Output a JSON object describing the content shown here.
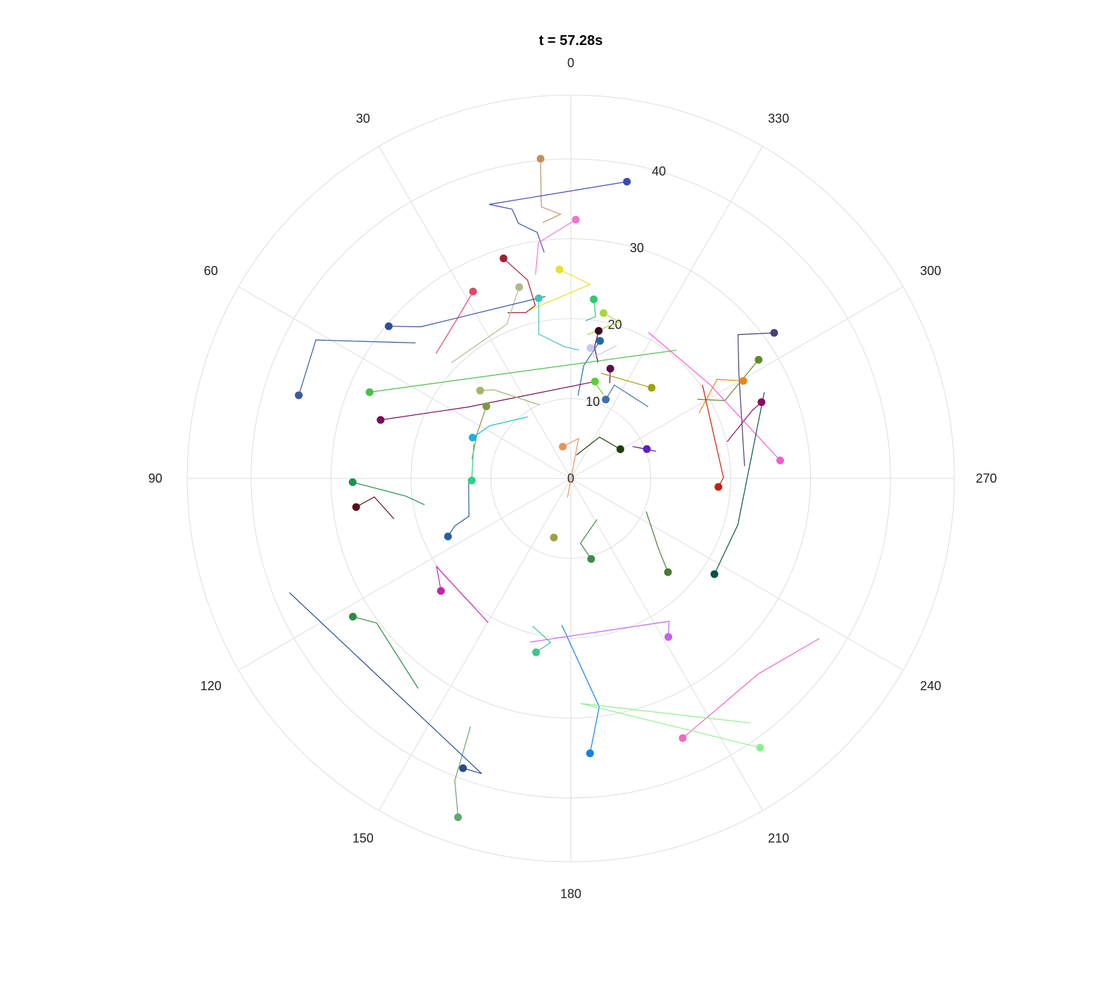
{
  "chart_data": {
    "type": "polar-scatter",
    "title": "t = 57.28s",
    "theta_direction": "counterclockwise",
    "theta_zero": "top",
    "theta_ticks": [
      0,
      30,
      60,
      90,
      120,
      150,
      180,
      210,
      240,
      270,
      300,
      330
    ],
    "r_ticks": [
      0,
      10,
      20,
      30,
      40
    ],
    "r_range": [
      0,
      40
    ],
    "grid": true,
    "legend": "none",
    "points": [
      {
        "theta": 5.4,
        "r": 40.2,
        "color": "#c4915a",
        "trail": [
          [
            6.2,
            34.2
          ],
          [
            2.2,
            33.1
          ],
          [
            6.3,
            32.2
          ]
        ]
      },
      {
        "theta": 349.3,
        "r": 37.8,
        "color": "#3d4bbd",
        "trail": [
          [
            16.6,
            35.8
          ],
          [
            12.3,
            34.5
          ],
          [
            11.6,
            32.6
          ],
          [
            7.8,
            31.1
          ],
          [
            6.7,
            28.5
          ]
        ]
      },
      {
        "theta": 358.9,
        "r": 32.4,
        "color": "#ee77cc",
        "trail": [
          [
            7.8,
            29.8
          ],
          [
            9.8,
            25.9
          ]
        ]
      },
      {
        "theta": 3.1,
        "r": 26.2,
        "color": "#e8e128",
        "trail": [
          [
            354.3,
            24.4
          ],
          [
            14.0,
            21.7
          ]
        ]
      },
      {
        "theta": 17.0,
        "r": 28.8,
        "color": "#a02035",
        "trail": [
          [
            12.3,
            25.4
          ],
          [
            11.6,
            22.1
          ],
          [
            15.2,
            21.5
          ],
          [
            20.9,
            22.2
          ]
        ]
      },
      {
        "theta": 27.6,
        "r": 26.4,
        "color": "#e24a6a",
        "trail": [
          [
            35.0,
            24.6
          ],
          [
            47.2,
            23.0
          ]
        ]
      },
      {
        "theta": 15.1,
        "r": 24.8,
        "color": "#b7b591",
        "trail": [
          [
            22.5,
            20.9
          ],
          [
            45.9,
            20.8
          ]
        ]
      },
      {
        "theta": 10.1,
        "r": 22.9,
        "color": "#45c4b9",
        "trail": [
          [
            12.5,
            18.5
          ],
          [
            2.7,
            16.5
          ],
          [
            356.3,
            16.1
          ]
        ]
      },
      {
        "theta": 352.7,
        "r": 22.6,
        "color": "#2ecc71",
        "trail": [
          [
            351.3,
            20.5
          ],
          [
            354.7,
            19.8
          ]
        ]
      },
      {
        "theta": 348.8,
        "r": 21.1,
        "color": "#a8d93a",
        "trail": [
          [
            342.8,
            20.5
          ],
          [
            353.5,
            18.1
          ]
        ]
      },
      {
        "theta": 349.3,
        "r": 18.8,
        "color": "#3a0a22",
        "trail": [
          [
            349.8,
            16.7
          ],
          [
            346.8,
            14.9
          ]
        ]
      },
      {
        "theta": 348.0,
        "r": 17.6,
        "color": "#1f6ab0",
        "trail": [
          [
            353.5,
            14.2
          ],
          [
            355.0,
            10.4
          ]
        ]
      },
      {
        "theta": 351.4,
        "r": 16.5,
        "color": "#c8c8f0",
        "trail": [
          [
            349.1,
            15.5
          ],
          [
            341.0,
            17.6
          ]
        ]
      },
      {
        "theta": 340.2,
        "r": 14.6,
        "color": "#5c0c4a",
        "trail": [
          [
            337.8,
            12.9
          ]
        ]
      },
      {
        "theta": 318.3,
        "r": 15.2,
        "color": "#9fa00c",
        "trail": [
          [
            334.0,
            13.9
          ],
          [
            344.0,
            13.7
          ]
        ]
      },
      {
        "theta": 346.0,
        "r": 12.5,
        "color": "#55d12e",
        "trail": [
          [
            344.5,
            12.1
          ],
          [
            339.0,
            11.3
          ]
        ]
      },
      {
        "theta": 336.1,
        "r": 10.8,
        "color": "#3f6fb4",
        "trail": [
          [
            335.0,
            12.9
          ],
          [
            312.8,
            13.2
          ]
        ]
      },
      {
        "theta": 305.6,
        "r": 31.3,
        "color": "#4b3f78",
        "trail": [
          [
            310.7,
            27.6
          ],
          [
            302.0,
            24.8
          ],
          [
            274.0,
            21.8
          ]
        ]
      },
      {
        "theta": 299.5,
        "r": 24.8,
        "color": "#e8871a",
        "trail": [
          [
            304.1,
            22.1
          ],
          [
            297.0,
            18.0
          ]
        ]
      },
      {
        "theta": 302.3,
        "r": 27.8,
        "color": "#5f8a24",
        "trail": [
          [
            296.8,
            21.6
          ],
          [
            302.0,
            18.7
          ]
        ]
      },
      {
        "theta": 291.8,
        "r": 25.7,
        "color": "#8e0a5c",
        "trail": [
          [
            290.5,
            24.2
          ],
          [
            283.2,
            20.1
          ]
        ]
      },
      {
        "theta": 274.9,
        "r": 26.3,
        "color": "#f25ed0",
        "trail": [
          [
            304.0,
            21.0
          ],
          [
            332.0,
            20.7
          ]
        ]
      },
      {
        "theta": 266.7,
        "r": 18.5,
        "color": "#c9200a",
        "trail": [
          [
            270.3,
            19.1
          ],
          [
            305.4,
            20.2
          ]
        ]
      },
      {
        "theta": 236.3,
        "r": 21.6,
        "color": "#0a5247",
        "trail": [
          [
            254.5,
            21.7
          ],
          [
            294.0,
            26.5
          ]
        ]
      },
      {
        "theta": 300.5,
        "r": 7.2,
        "color": "#1e3d08",
        "trail": [
          [
            325.2,
            6.3
          ],
          [
            346.6,
            3.0
          ]
        ]
      },
      {
        "theta": 291.1,
        "r": 10.2,
        "color": "#5a20c4",
        "trail": [
          [
            297.3,
            8.7
          ],
          [
            287.6,
            11.2
          ]
        ]
      },
      {
        "theta": 226.0,
        "r": 16.9,
        "color": "#4a7a38",
        "trail": [
          [
            231.7,
            13.9
          ],
          [
            246.3,
            10.3
          ]
        ]
      },
      {
        "theta": 194.2,
        "r": 10.4,
        "color": "#3f8a4a",
        "trail": [
          [
            188.5,
            8.2
          ],
          [
            212.6,
            6.1
          ]
        ]
      },
      {
        "theta": 164.0,
        "r": 7.7,
        "color": "#a0a03c",
        "trail": []
      },
      {
        "theta": 14.3,
        "r": 4.1,
        "color": "#e8955a",
        "trail": [
          [
            349.0,
            5.1
          ],
          [
            170.0,
            2.4
          ]
        ]
      },
      {
        "theta": 50.1,
        "r": 29.7,
        "color": "#2f4ea0",
        "trail": [
          [
            44.7,
            26.7
          ],
          [
            8.0,
            23.0
          ]
        ]
      },
      {
        "theta": 66.8,
        "r": 27.4,
        "color": "#47c24a",
        "trail": [
          [
            320.5,
            20.8
          ]
        ]
      },
      {
        "theta": 72.9,
        "r": 24.9,
        "color": "#7a0a5a",
        "trail": [
          [
            55.0,
            15.6
          ],
          [
            345.0,
            12.6
          ]
        ]
      },
      {
        "theta": 45.9,
        "r": 15.8,
        "color": "#a9b26a",
        "trail": [
          [
            41.0,
            14.7
          ],
          [
            23.0,
            10.0
          ]
        ]
      },
      {
        "theta": 49.5,
        "r": 13.9,
        "color": "#7a9a40",
        "trail": [
          [
            64.4,
            13.0
          ],
          [
            79.0,
            12.6
          ]
        ]
      },
      {
        "theta": 67.4,
        "r": 13.3,
        "color": "#14b8d4",
        "trail": [
          [
            56.9,
            12.1
          ],
          [
            35.0,
            9.4
          ]
        ]
      },
      {
        "theta": 91.2,
        "r": 12.4,
        "color": "#2bd184",
        "trail": [
          [
            70.3,
            12.9
          ]
        ]
      },
      {
        "theta": 91.0,
        "r": 27.3,
        "color": "#1a9150",
        "trail": [
          [
            96.1,
            20.8
          ],
          [
            100.2,
            18.6
          ]
        ]
      },
      {
        "theta": 97.6,
        "r": 27.1,
        "color": "#5c0a1a",
        "trail": [
          [
            95.4,
            24.7
          ],
          [
            102.9,
            22.7
          ]
        ]
      },
      {
        "theta": 115.3,
        "r": 17.0,
        "color": "#2a5e9c",
        "trail": [
          [
            112.3,
            15.7
          ],
          [
            110.4,
            13.6
          ],
          [
            92.5,
            12.8
          ]
        ]
      },
      {
        "theta": 130.9,
        "r": 21.5,
        "color": "#c026a8",
        "trail": [
          [
            123.3,
            20.1
          ],
          [
            150.2,
            20.8
          ]
        ]
      },
      {
        "theta": 122.4,
        "r": 32.3,
        "color": "#2e8a44",
        "trail": [
          [
            126.7,
            30.3
          ],
          [
            144.0,
            32.5
          ]
        ]
      },
      {
        "theta": 161.6,
        "r": 44.7,
        "color": "#63a86f",
        "trail": [
          [
            159.0,
            40.5
          ],
          [
            158.0,
            33.5
          ]
        ]
      },
      {
        "theta": 168.7,
        "r": 22.2,
        "color": "#42c48a",
        "trail": [
          [
            173.0,
            20.7
          ],
          [
            165.5,
            19.1
          ]
        ]
      },
      {
        "theta": 184.0,
        "r": 34.5,
        "color": "#1282e6",
        "trail": [
          [
            187.1,
            28.8
          ],
          [
            176.5,
            18.4
          ]
        ]
      },
      {
        "theta": 203.3,
        "r": 35.4,
        "color": "#f06ab8",
        "trail": [
          [
            223.8,
            33.9
          ],
          [
            237.2,
            37.0
          ]
        ]
      },
      {
        "theta": 211.6,
        "r": 23.3,
        "color": "#c760f0",
        "trail": [
          [
            214.5,
            21.7
          ],
          [
            166.1,
            21.1
          ]
        ]
      },
      {
        "theta": 215.1,
        "r": 41.2,
        "color": "#8cf090",
        "trail": [
          [
            182.5,
            28.2
          ],
          [
            216.3,
            38.0
          ]
        ]
      },
      {
        "theta": 159.6,
        "r": 38.7,
        "color": "#2a4a8a",
        "trail": [
          [
            163.2,
            38.6
          ],
          [
            112.1,
            38.0
          ]
        ]
      },
      {
        "theta": 73.0,
        "r": 35.6,
        "color": "#3a5a9a",
        "trail": [
          [
            61.5,
            36.3
          ],
          [
            48.9,
            25.8
          ]
        ]
      }
    ]
  }
}
